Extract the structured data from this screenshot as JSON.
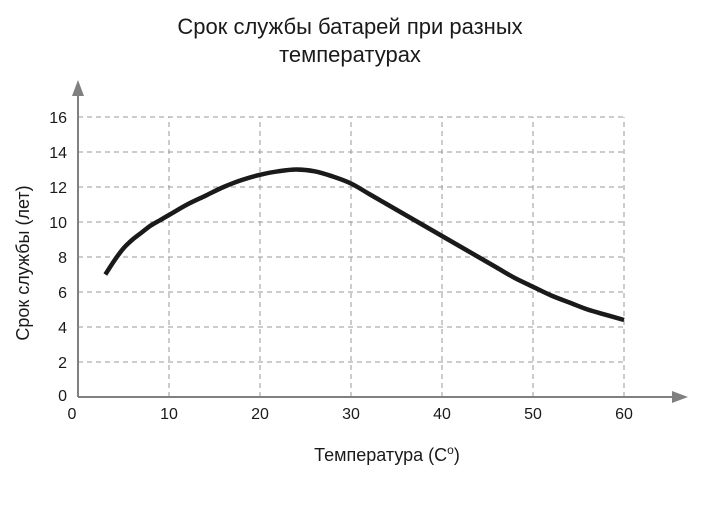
{
  "chart_data": {
    "type": "line",
    "title_lines": [
      "Срок службы батарей при разных",
      "температурах"
    ],
    "xlabel": "Температура (С",
    "xlabel_sup": "о",
    "xlabel_close": ")",
    "ylabel": "Срок службы (лет)",
    "xlim": [
      0,
      60
    ],
    "ylim": [
      0,
      16
    ],
    "x_ticks": [
      10,
      20,
      30,
      40,
      50,
      60
    ],
    "y_ticks": [
      2,
      4,
      6,
      8,
      10,
      12,
      14,
      16
    ],
    "origin_labels": {
      "x": "0",
      "y": "0"
    },
    "grid": true,
    "series": [
      {
        "x": [
          3,
          4,
          5,
          6,
          7,
          8,
          9,
          10,
          12,
          14,
          16,
          18,
          20,
          22,
          24,
          26,
          28,
          30,
          32,
          34,
          36,
          38,
          40,
          42,
          44,
          46,
          48,
          50,
          52,
          54,
          56,
          58,
          60
        ],
        "y": [
          7.0,
          7.8,
          8.5,
          9.0,
          9.4,
          9.8,
          10.1,
          10.4,
          11.0,
          11.5,
          12.0,
          12.4,
          12.7,
          12.9,
          13.0,
          12.9,
          12.6,
          12.2,
          11.6,
          11.0,
          10.4,
          9.8,
          9.2,
          8.6,
          8.0,
          7.4,
          6.8,
          6.3,
          5.8,
          5.4,
          5.0,
          4.7,
          4.4
        ]
      }
    ],
    "colors": {
      "line": "#1a1a1a",
      "axis": "#808080",
      "grid": "#9a9a9a",
      "text": "#1a1a1a"
    }
  }
}
